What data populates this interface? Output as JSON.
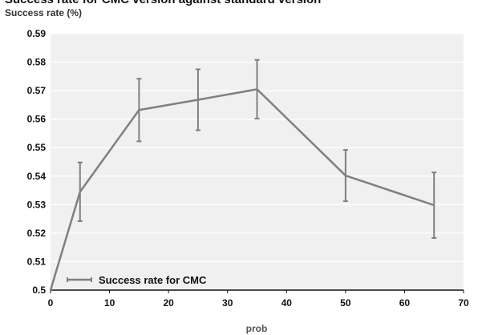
{
  "chart_data": {
    "type": "line",
    "title": "Success rate for CMC version against standard version",
    "subtitle": "Success rate (%)",
    "xlabel": "prob",
    "ylabel": "",
    "xlim": [
      0,
      70
    ],
    "ylim": [
      0.5,
      0.59
    ],
    "x_ticks": [
      "0",
      "10",
      "20",
      "30",
      "40",
      "50",
      "60",
      "70"
    ],
    "y_ticks": [
      "0.5",
      "0.51",
      "0.52",
      "0.53",
      "0.54",
      "0.55",
      "0.56",
      "0.57",
      "0.58",
      "0.59"
    ],
    "grid": true,
    "legend_position": "bottom-left",
    "series": [
      {
        "name": "Success rate for CMC",
        "color": "#808080",
        "x": [
          0,
          5,
          15,
          25,
          35,
          50,
          65
        ],
        "y": [
          0.5,
          0.5345,
          0.5632,
          0.5668,
          0.5705,
          0.5402,
          0.5298
        ],
        "error": [
          0,
          0.0103,
          0.011,
          0.0107,
          0.0103,
          0.009,
          0.0115
        ]
      }
    ]
  }
}
